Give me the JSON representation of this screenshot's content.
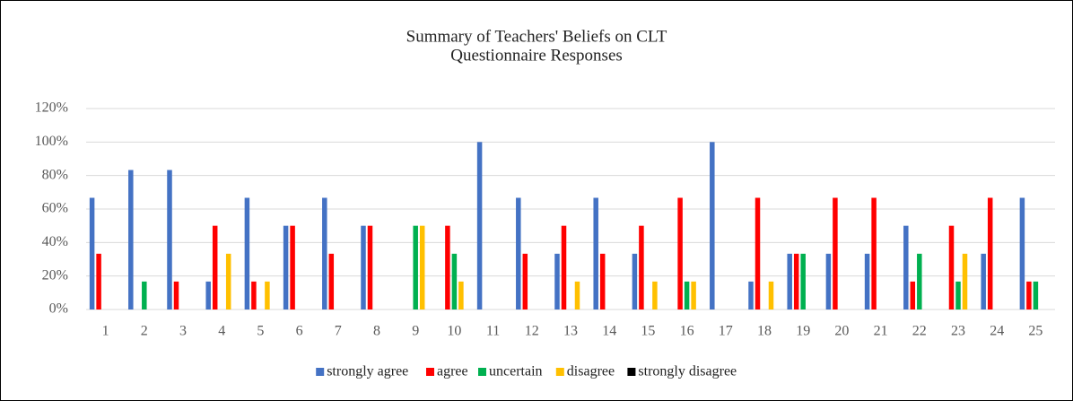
{
  "chart_data": {
    "type": "bar",
    "title": "Summary of Teachers' Beliefs on CLT",
    "subtitle": "Questionnaire Responses",
    "categories": [
      "1",
      "2",
      "3",
      "4",
      "5",
      "6",
      "7",
      "8",
      "9",
      "10",
      "11",
      "12",
      "13",
      "14",
      "15",
      "16",
      "17",
      "18",
      "19",
      "20",
      "21",
      "22",
      "23",
      "24",
      "25"
    ],
    "series": [
      {
        "name": "strongly agree",
        "color": "#4472c4",
        "values": [
          66.7,
          83.3,
          83.3,
          16.7,
          66.7,
          50,
          66.7,
          50,
          0,
          0,
          100,
          66.7,
          33.3,
          66.7,
          33.3,
          0,
          100,
          16.7,
          33.3,
          33.3,
          33.3,
          50,
          0,
          33.3,
          66.7
        ]
      },
      {
        "name": "agree",
        "color": "#ff0000",
        "values": [
          33.3,
          0,
          16.7,
          50,
          16.7,
          50,
          33.3,
          50,
          0,
          50,
          0,
          33.3,
          50,
          33.3,
          50,
          66.7,
          0,
          66.7,
          33.3,
          66.7,
          66.7,
          16.7,
          50,
          66.7,
          16.7
        ]
      },
      {
        "name": "uncertain",
        "color": "#00b050",
        "values": [
          0,
          16.7,
          0,
          0,
          0,
          0,
          0,
          0,
          50,
          33.3,
          0,
          0,
          0,
          0,
          0,
          16.7,
          0,
          0,
          33.3,
          0,
          0,
          33.3,
          16.7,
          0,
          16.7
        ]
      },
      {
        "name": "disagree",
        "color": "#ffc000",
        "values": [
          0,
          0,
          0,
          33.3,
          16.7,
          0,
          0,
          0,
          50,
          16.7,
          0,
          0,
          16.7,
          0,
          16.7,
          16.7,
          0,
          16.7,
          0,
          0,
          0,
          0,
          33.3,
          0,
          0
        ]
      },
      {
        "name": "strongly disagree",
        "color": "#000000",
        "values": [
          0,
          0,
          0,
          0,
          0,
          0,
          0,
          0,
          0,
          0,
          0,
          0,
          0,
          0,
          0,
          0,
          0,
          0,
          0,
          0,
          0,
          0,
          0,
          0,
          0
        ]
      }
    ],
    "ylim": [
      0,
      120
    ],
    "yticks": [
      {
        "value": 0,
        "label": "0%"
      },
      {
        "value": 20,
        "label": "20%"
      },
      {
        "value": 40,
        "label": "40%"
      },
      {
        "value": 60,
        "label": "60%"
      },
      {
        "value": 80,
        "label": "80%"
      },
      {
        "value": 100,
        "label": "100%"
      },
      {
        "value": 120,
        "label": "120%"
      }
    ],
    "grid": true,
    "legend": "bottom"
  }
}
